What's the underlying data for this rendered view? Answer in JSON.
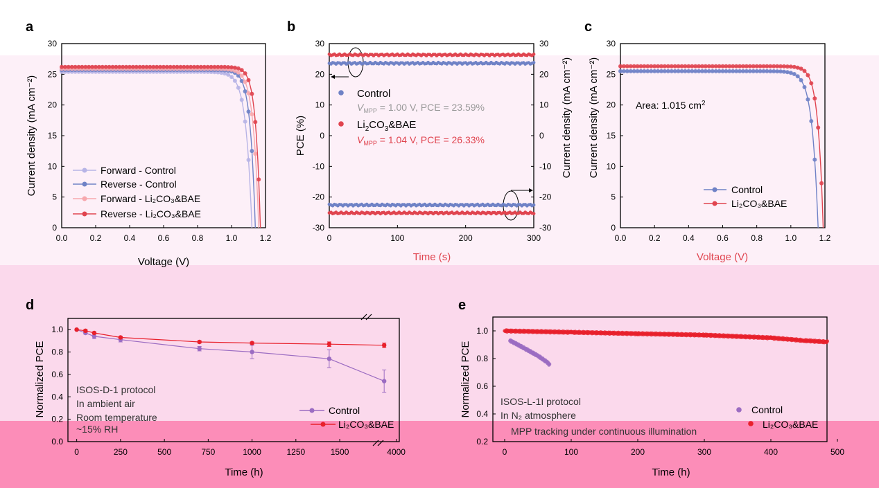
{
  "colors": {
    "control_light": "#b7b4e6",
    "control": "#6f82c6",
    "treated_light": "#f7a8ae",
    "treated": "#e0444f",
    "purple": "#9b6cc2",
    "red_bright": "#e8202b",
    "band_light": "#fdf0f8",
    "band_mid": "#fbd9ec",
    "band_strong": "#fc8db8"
  },
  "panels": {
    "a": {
      "letter": "a",
      "xlabel": "Voltage (V)",
      "ylabel": "Current density (mA cm⁻²)"
    },
    "b": {
      "letter": "b",
      "xlabel": "Time (s)",
      "ylabel_left": "PCE (%)",
      "ylabel_right": "Current density (mA cm⁻²)",
      "legend": {
        "control": "Control",
        "control_note_pre": "V",
        "control_note_sub": "MPP",
        "control_note_post": " = 1.00 V, PCE = 23.59%",
        "treated_main": "Li",
        "treated_sub1": "2",
        "treated_mid": "CO",
        "treated_sub2": "3",
        "treated_end": "&BAE",
        "treated_note_pre": "V",
        "treated_note_sub": "MPP",
        "treated_note_post": " = 1.04 V, PCE = 26.33%"
      }
    },
    "c": {
      "letter": "c",
      "xlabel": "Voltage (V)",
      "ylabel": "Current density (mA cm⁻²)",
      "area_pre": "Area: 1.015 cm",
      "area_sup": "2"
    },
    "d": {
      "letter": "d",
      "xlabel": "Time (h)",
      "ylabel": "Normalized PCE",
      "notes": [
        "ISOS-D-1 protocol",
        "In ambient air",
        "Room temperature",
        "~15% RH"
      ]
    },
    "e": {
      "letter": "e",
      "xlabel": "Time (h)",
      "ylabel": "Normalized PCE",
      "notes": [
        "ISOS-L-1I protocol",
        "In N₂ atmosphere",
        "MPP tracking under continuous illumination"
      ]
    }
  },
  "legend_labels": {
    "forward_control": "Forward - Control",
    "reverse_control": "Reverse - Control",
    "forward_treated": "Forward - Li₂CO₃&BAE",
    "reverse_treated": "Reverse - Li₂CO₃&BAE",
    "control": "Control",
    "treated": "Li₂CO₃&BAE"
  },
  "chart_data": [
    {
      "id": "a",
      "type": "line",
      "xlabel": "Voltage (V)",
      "ylabel": "Current density (mA cm⁻²)",
      "xlim": [
        0,
        1.2
      ],
      "ylim": [
        0,
        30
      ],
      "xticks": [
        0.0,
        0.2,
        0.4,
        0.6,
        0.8,
        1.0,
        1.2
      ],
      "yticks": [
        0,
        5,
        10,
        15,
        20,
        25,
        30
      ],
      "legend_position": "bottom-left",
      "series": [
        {
          "name": "Forward - Control",
          "jsc": 25.4,
          "voc": 1.12,
          "n": 0.035
        },
        {
          "name": "Reverse - Control",
          "jsc": 25.7,
          "voc": 1.14,
          "n": 0.03
        },
        {
          "name": "Forward - Li₂CO₃&BAE",
          "jsc": 25.9,
          "voc": 1.16,
          "n": 0.032
        },
        {
          "name": "Reverse - Li₂CO₃&BAE",
          "jsc": 26.2,
          "voc": 1.17,
          "n": 0.028
        }
      ]
    },
    {
      "id": "b",
      "type": "scatter",
      "xlabel": "Time (s)",
      "ylabel": "PCE (%)",
      "ylabel_right": "Current density (mA cm⁻²)",
      "xlim": [
        0,
        300
      ],
      "ylim": [
        -30,
        30
      ],
      "xticks": [
        0,
        100,
        200,
        300
      ],
      "yticks": [
        -30,
        -20,
        -10,
        0,
        10,
        20,
        30
      ],
      "series": [
        {
          "name": "Control PCE",
          "value": 23.59
        },
        {
          "name": "Li₂CO₃&BAE PCE",
          "value": 26.33
        },
        {
          "name": "Control current density",
          "value": -22.6
        },
        {
          "name": "Li₂CO₃&BAE current density",
          "value": -25.2
        }
      ]
    },
    {
      "id": "c",
      "type": "line",
      "xlabel": "Voltage (V)",
      "ylabel": "Current density (mA cm⁻²)",
      "xlim": [
        0,
        1.2
      ],
      "ylim": [
        0,
        30
      ],
      "xticks": [
        0.0,
        0.2,
        0.4,
        0.6,
        0.8,
        1.0,
        1.2
      ],
      "yticks": [
        0,
        5,
        10,
        15,
        20,
        25,
        30
      ],
      "legend_position": "bottom-right",
      "series": [
        {
          "name": "Control",
          "jsc": 25.5,
          "voc": 1.16,
          "n": 0.035
        },
        {
          "name": "Li₂CO₃&BAE",
          "jsc": 26.3,
          "voc": 1.19,
          "n": 0.031
        }
      ]
    },
    {
      "id": "d",
      "type": "line",
      "xlabel": "Time (h)",
      "ylabel": "Normalized PCE",
      "ylim": [
        0.0,
        1.1
      ],
      "xticks": [
        0,
        250,
        500,
        750,
        1000,
        1250,
        1500,
        4000
      ],
      "yticks": [
        0.0,
        0.2,
        0.4,
        0.6,
        0.8,
        1.0
      ],
      "legend_position": "bottom-right",
      "series": [
        {
          "name": "Control",
          "x": [
            0,
            50,
            100,
            250,
            700,
            1000,
            1440,
            3800
          ],
          "y": [
            1.0,
            0.97,
            0.94,
            0.91,
            0.83,
            0.8,
            0.74,
            0.54
          ],
          "err": [
            0,
            0.01,
            0.02,
            0.02,
            0.02,
            0.06,
            0.08,
            0.1
          ]
        },
        {
          "name": "Li₂CO₃&BAE",
          "x": [
            0,
            50,
            100,
            250,
            700,
            1000,
            1440,
            3800
          ],
          "y": [
            1.0,
            0.99,
            0.97,
            0.93,
            0.89,
            0.88,
            0.87,
            0.86
          ],
          "err": [
            0,
            0.01,
            0.01,
            0.01,
            0.01,
            0.01,
            0.02,
            0.02
          ]
        }
      ]
    },
    {
      "id": "e",
      "type": "scatter",
      "xlabel": "Time (h)",
      "ylabel": "Normalized PCE",
      "xlim": [
        0,
        500
      ],
      "ylim": [
        0.2,
        1.1
      ],
      "xticks": [
        0,
        100,
        200,
        300,
        400,
        500
      ],
      "yticks": [
        0.2,
        0.4,
        0.6,
        0.8,
        1.0
      ],
      "legend_position": "bottom-right",
      "series": [
        {
          "name": "Control",
          "x": [
            8,
            20,
            35,
            50,
            65,
            68
          ],
          "y": [
            0.93,
            0.9,
            0.86,
            0.82,
            0.77,
            0.75
          ]
        },
        {
          "name": "Li₂CO₃&BAE",
          "x": [
            0,
            100,
            200,
            300,
            400,
            450,
            485
          ],
          "y": [
            1.0,
            0.99,
            0.98,
            0.97,
            0.95,
            0.93,
            0.92
          ]
        }
      ]
    }
  ]
}
